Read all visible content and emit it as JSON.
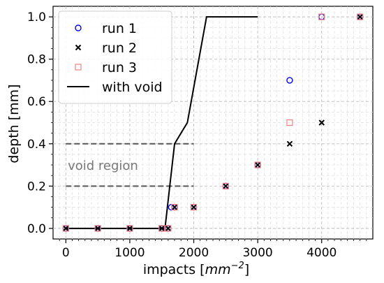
{
  "chart_data": {
    "type": "scatter",
    "xlabel": "impacts [",
    "xlabel_unit": "mm",
    "xlabel_exp": "−2",
    "xlabel_close": "]",
    "ylabel": "depth [mm]",
    "xlim": [
      -200,
      4800
    ],
    "ylim": [
      -0.05,
      1.05
    ],
    "x_ticks": [
      0,
      1000,
      2000,
      3000,
      4000
    ],
    "x_tick_labels": [
      "0",
      "1000",
      "2000",
      "3000",
      "4000"
    ],
    "y_ticks": [
      0.0,
      0.2,
      0.4,
      0.6,
      0.8,
      1.0
    ],
    "y_tick_labels": [
      "0.0",
      "0.2",
      "0.4",
      "0.6",
      "0.8",
      "1.0"
    ],
    "grid": true,
    "legend_position": "top-left",
    "series": [
      {
        "name": "run 1",
        "marker": "circle-open",
        "color": "#0000ff",
        "x": [
          0,
          500,
          1000,
          1500,
          1600,
          1650,
          1700,
          2000,
          2500,
          3000,
          3500,
          4000,
          4600
        ],
        "y": [
          0.0,
          0.0,
          0.0,
          0.0,
          0.0,
          0.1,
          0.1,
          0.1,
          0.2,
          0.3,
          0.7,
          1.0,
          1.0
        ]
      },
      {
        "name": "run 2",
        "marker": "x",
        "color": "#000000",
        "x": [
          0,
          500,
          1000,
          1500,
          1600,
          1700,
          2000,
          2500,
          3000,
          3500,
          4000,
          4600
        ],
        "y": [
          0.0,
          0.0,
          0.0,
          0.0,
          0.0,
          0.1,
          0.1,
          0.2,
          0.3,
          0.4,
          0.5,
          1.0
        ]
      },
      {
        "name": "run 3",
        "marker": "square-open",
        "color": "#f08080",
        "x": [
          0,
          500,
          1000,
          1500,
          1600,
          1700,
          2000,
          2500,
          3000,
          3500,
          4000,
          4600
        ],
        "y": [
          0.0,
          0.0,
          0.0,
          0.0,
          0.0,
          0.1,
          0.1,
          0.2,
          0.3,
          0.5,
          1.0,
          1.0
        ]
      },
      {
        "name": "with void",
        "marker": "line",
        "color": "#000000",
        "x": [
          0,
          1550,
          1700,
          1900,
          2200,
          3000
        ],
        "y": [
          0.0,
          0.0,
          0.4,
          0.5,
          1.0,
          1.0
        ]
      }
    ],
    "void_lines": {
      "color": "#555555",
      "x": [
        0,
        2000
      ],
      "y": [
        0.2,
        0.4
      ]
    },
    "annotations": [
      {
        "text": "void region",
        "x": 30,
        "y": 0.3,
        "color": "#777777"
      }
    ]
  }
}
